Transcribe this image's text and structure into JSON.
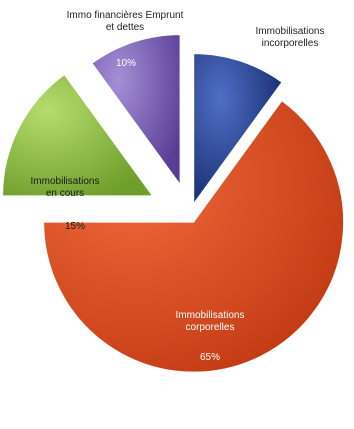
{
  "chart_data": {
    "type": "pie",
    "exploded": true,
    "three_d_style": true,
    "slices": [
      {
        "label_lines": [
          "Immobilisations",
          "incorporelles"
        ],
        "value": 10,
        "value_label": "10%",
        "color": "#1f3f93"
      },
      {
        "label_lines": [
          "Immobilisations",
          "corporelles"
        ],
        "value": 65,
        "value_label": "65%",
        "color": "#e2461a"
      },
      {
        "label_lines": [
          "Immobilisations",
          "en cours"
        ],
        "value": 15,
        "value_label": "15%",
        "color": "#8fc23c"
      },
      {
        "label_lines": [
          "Immo financières Emprunt",
          "et dettes"
        ],
        "value": 10,
        "value_label": "10%",
        "color": "#7a5cb4"
      }
    ]
  }
}
